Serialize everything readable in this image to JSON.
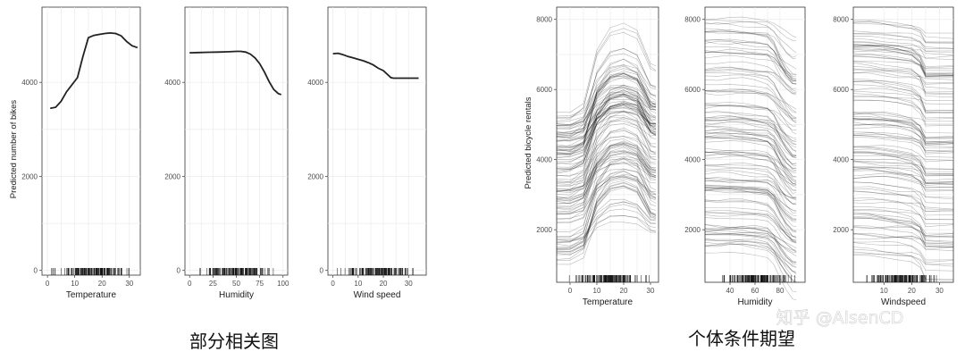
{
  "figure": {
    "pdp_caption": "部分相关图",
    "ice_caption": "个体条件期望",
    "watermark": "知乎 @AisenCD",
    "pdp_ylabel": "Predicted number of bikes",
    "ice_ylabel": "Predicted bicycle rentals"
  },
  "chart_data": [
    {
      "type": "line",
      "group": "pdp",
      "xlabel": "Temperature",
      "xlim": [
        -2,
        34
      ],
      "ylim": [
        -100,
        5600
      ],
      "grid": true,
      "rug": true,
      "xticks": [
        0,
        10,
        20,
        30
      ],
      "yticks": [
        0,
        2000,
        4000
      ],
      "x": [
        1,
        3,
        5,
        7,
        9,
        11,
        13,
        15,
        17,
        19,
        21,
        23,
        25,
        27,
        29,
        31,
        33
      ],
      "y": [
        3450,
        3470,
        3600,
        3800,
        3950,
        4100,
        4550,
        4950,
        5000,
        5020,
        5040,
        5050,
        5040,
        4990,
        4870,
        4780,
        4740
      ]
    },
    {
      "type": "line",
      "group": "pdp",
      "xlabel": "Humidity",
      "xlim": [
        -5,
        105
      ],
      "ylim": [
        -100,
        5600
      ],
      "grid": true,
      "rug": true,
      "xticks": [
        0,
        25,
        50,
        75,
        100
      ],
      "yticks": [
        0,
        2000,
        4000
      ],
      "x": [
        0,
        10,
        20,
        30,
        40,
        50,
        55,
        60,
        65,
        70,
        75,
        80,
        85,
        90,
        95,
        98
      ],
      "y": [
        4630,
        4635,
        4640,
        4645,
        4650,
        4660,
        4660,
        4645,
        4600,
        4520,
        4400,
        4220,
        4020,
        3850,
        3760,
        3740
      ]
    },
    {
      "type": "line",
      "group": "pdp",
      "xlabel": "Wind speed",
      "xlim": [
        -2,
        37
      ],
      "ylim": [
        -100,
        5600
      ],
      "grid": true,
      "rug": true,
      "xticks": [
        0,
        10,
        20,
        30
      ],
      "yticks": [
        0,
        2000,
        4000
      ],
      "x": [
        0,
        2,
        4,
        6,
        8,
        10,
        12,
        14,
        16,
        18,
        20,
        22,
        23,
        24,
        26,
        28,
        30,
        32,
        34
      ],
      "y": [
        4610,
        4620,
        4590,
        4550,
        4520,
        4490,
        4460,
        4420,
        4370,
        4300,
        4250,
        4150,
        4100,
        4090,
        4090,
        4090,
        4090,
        4090,
        4090
      ]
    },
    {
      "type": "line",
      "group": "ice",
      "xlabel": "Temperature",
      "xlim": [
        -5,
        33
      ],
      "ylim": [
        500,
        8350
      ],
      "grid": true,
      "rug": true,
      "xticks": [
        0,
        10,
        20,
        30
      ],
      "yticks": [
        2000,
        4000,
        6000,
        8000
      ],
      "x": [
        -5,
        0,
        5,
        10,
        15,
        20,
        25,
        30,
        32
      ],
      "base_range": [
        1000,
        5400
      ],
      "curve_count": 120,
      "effect_range": [
        700,
        2700
      ],
      "shape": [
        0,
        0,
        0.1,
        0.7,
        0.95,
        1.0,
        0.92,
        0.55,
        0.52
      ]
    },
    {
      "type": "line",
      "group": "ice",
      "xlabel": "Humidity",
      "xlim": [
        20,
        100
      ],
      "ylim": [
        500,
        8350
      ],
      "grid": true,
      "rug": true,
      "xticks": [
        40,
        60,
        80
      ],
      "yticks": [
        2000,
        4000,
        6000,
        8000
      ],
      "x": [
        20,
        30,
        40,
        50,
        60,
        70,
        75,
        80,
        85,
        90,
        93
      ],
      "base_range": [
        1300,
        8100
      ],
      "curve_count": 120,
      "effect_range": [
        500,
        1400
      ],
      "shape": [
        0,
        0,
        0,
        0.02,
        0.05,
        0.1,
        0.25,
        0.55,
        0.8,
        0.98,
        1.0
      ]
    },
    {
      "type": "line",
      "group": "ice",
      "xlabel": "Windspeed",
      "xlim": [
        -1,
        35
      ],
      "ylim": [
        500,
        8350
      ],
      "grid": true,
      "rug": true,
      "xticks": [
        10,
        20,
        30
      ],
      "yticks": [
        2000,
        4000,
        6000,
        8000
      ],
      "x": [
        -1,
        5,
        10,
        15,
        20,
        23,
        25,
        35
      ],
      "base_range": [
        1100,
        8000
      ],
      "curve_count": 120,
      "effect_range": [
        200,
        900
      ],
      "shape": [
        0,
        0.02,
        0.08,
        0.15,
        0.25,
        0.5,
        1.0,
        1.0
      ]
    }
  ]
}
